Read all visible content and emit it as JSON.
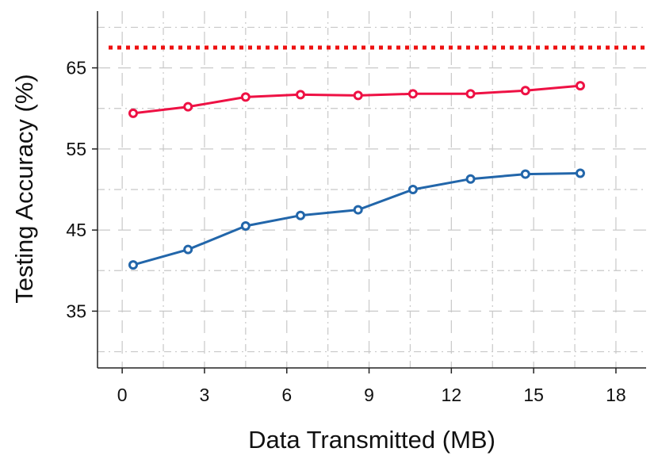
{
  "chart_data": {
    "type": "line",
    "xlabel": "Data Transmitted (MB)",
    "ylabel": "Testing Accuracy (%)",
    "xlim": [
      -0.9,
      19.1
    ],
    "ylim": [
      28,
      72
    ],
    "x_ticks": [
      0,
      3,
      6,
      9,
      12,
      15,
      18
    ],
    "x_tick_labels": [
      "0",
      "3",
      "6",
      "9",
      "12",
      "15",
      "18"
    ],
    "y_ticks": [
      35,
      45,
      55,
      65
    ],
    "y_tick_labels": [
      "35",
      "45",
      "55",
      "65"
    ],
    "grid": true,
    "legend": "none",
    "reference_line": {
      "y": 67.5,
      "color": "#ee1111",
      "style": "dotted"
    },
    "series": [
      {
        "color": "#ee1144",
        "marker": "circle",
        "x": [
          0.4,
          2.4,
          4.5,
          6.5,
          8.6,
          10.6,
          12.7,
          14.7,
          16.7
        ],
        "y": [
          59.4,
          60.2,
          61.4,
          61.7,
          61.6,
          61.8,
          61.8,
          62.2,
          62.8
        ]
      },
      {
        "color": "#2266aa",
        "marker": "circle",
        "x": [
          0.4,
          2.4,
          4.5,
          6.5,
          8.6,
          10.6,
          12.7,
          14.7,
          16.7
        ],
        "y": [
          40.7,
          42.6,
          45.5,
          46.8,
          47.5,
          50.0,
          51.3,
          51.9,
          52.0
        ]
      }
    ]
  }
}
